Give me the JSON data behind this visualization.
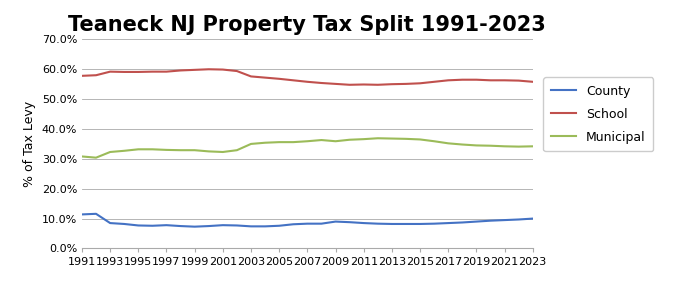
{
  "title": "Teaneck NJ Property Tax Split 1991-2023",
  "ylabel": "% of Tax Levy",
  "years": [
    1991,
    1992,
    1993,
    1994,
    1995,
    1996,
    1997,
    1998,
    1999,
    2000,
    2001,
    2002,
    2003,
    2004,
    2005,
    2006,
    2007,
    2008,
    2009,
    2010,
    2011,
    2012,
    2013,
    2014,
    2015,
    2016,
    2017,
    2018,
    2019,
    2020,
    2021,
    2022,
    2023
  ],
  "county": [
    0.114,
    0.116,
    0.085,
    0.082,
    0.077,
    0.076,
    0.078,
    0.075,
    0.073,
    0.075,
    0.078,
    0.077,
    0.074,
    0.074,
    0.076,
    0.081,
    0.083,
    0.083,
    0.09,
    0.088,
    0.085,
    0.083,
    0.082,
    0.082,
    0.082,
    0.083,
    0.085,
    0.087,
    0.09,
    0.093,
    0.095,
    0.097,
    0.1
  ],
  "school": [
    0.578,
    0.58,
    0.592,
    0.591,
    0.591,
    0.592,
    0.592,
    0.596,
    0.598,
    0.6,
    0.599,
    0.594,
    0.576,
    0.572,
    0.568,
    0.563,
    0.558,
    0.554,
    0.551,
    0.548,
    0.549,
    0.548,
    0.55,
    0.551,
    0.553,
    0.558,
    0.563,
    0.565,
    0.565,
    0.563,
    0.563,
    0.562,
    0.558
  ],
  "municipal": [
    0.308,
    0.304,
    0.323,
    0.327,
    0.332,
    0.332,
    0.33,
    0.329,
    0.329,
    0.325,
    0.323,
    0.329,
    0.35,
    0.354,
    0.356,
    0.356,
    0.359,
    0.363,
    0.359,
    0.364,
    0.366,
    0.369,
    0.368,
    0.367,
    0.365,
    0.359,
    0.352,
    0.348,
    0.345,
    0.344,
    0.342,
    0.341,
    0.342
  ],
  "county_color": "#4472C4",
  "school_color": "#C0504D",
  "municipal_color": "#9BBB59",
  "ylim": [
    0.0,
    0.7
  ],
  "yticks": [
    0.0,
    0.1,
    0.2,
    0.3,
    0.4,
    0.5,
    0.6,
    0.7
  ],
  "bg_color": "#FFFFFF",
  "grid_color": "#AAAAAA",
  "title_fontsize": 15,
  "ylabel_fontsize": 9,
  "tick_fontsize": 8,
  "legend_fontsize": 9,
  "linewidth": 1.5
}
